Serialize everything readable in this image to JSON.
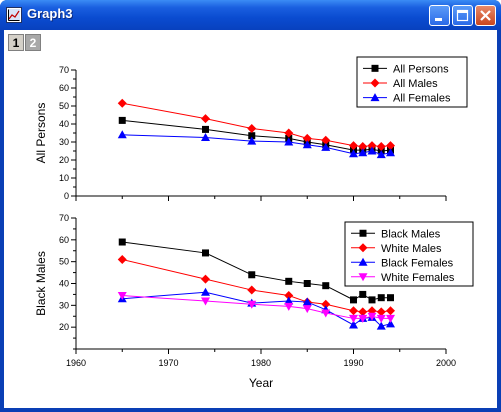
{
  "window": {
    "title": "Graph3",
    "layer_tabs": [
      "1",
      "2"
    ],
    "active_layer": "1"
  },
  "chart_data": [
    {
      "type": "line",
      "xlabel": "",
      "ylabel": "All Persons",
      "xlim": [
        1960,
        2000
      ],
      "ylim": [
        0,
        70
      ],
      "yticks": [
        0,
        10,
        20,
        30,
        40,
        50,
        60,
        70
      ],
      "legend_position": "top-right",
      "series": [
        {
          "name": "All Persons",
          "color": "#000000",
          "marker": "square",
          "x": [
            1965,
            1974,
            1979,
            1983,
            1985,
            1987,
            1990,
            1991,
            1992,
            1993,
            1994
          ],
          "y": [
            42.0,
            37.0,
            33.5,
            32.0,
            30.0,
            28.5,
            25.5,
            25.5,
            26.0,
            25.0,
            25.5
          ]
        },
        {
          "name": "All Males",
          "color": "#ff0000",
          "marker": "diamond",
          "x": [
            1965,
            1974,
            1979,
            1983,
            1985,
            1987,
            1990,
            1991,
            1992,
            1993,
            1994
          ],
          "y": [
            51.5,
            43.0,
            37.5,
            35.0,
            32.0,
            31.0,
            28.0,
            27.5,
            28.0,
            27.5,
            28.0
          ]
        },
        {
          "name": "All Females",
          "color": "#0000ff",
          "marker": "triangle-up",
          "x": [
            1965,
            1974,
            1979,
            1983,
            1985,
            1987,
            1990,
            1991,
            1992,
            1993,
            1994
          ],
          "y": [
            34.0,
            32.5,
            30.5,
            30.0,
            28.5,
            27.0,
            23.5,
            24.0,
            25.0,
            23.0,
            24.0
          ]
        }
      ]
    },
    {
      "type": "line",
      "xlabel": "Year",
      "ylabel": "Black Males",
      "xlim": [
        1960,
        2000
      ],
      "ylim": [
        10,
        70
      ],
      "yticks": [
        20,
        30,
        40,
        50,
        60,
        70
      ],
      "xticks": [
        1960,
        1970,
        1980,
        1990,
        2000
      ],
      "legend_position": "top-right",
      "series": [
        {
          "name": "Black Males",
          "color": "#000000",
          "marker": "square",
          "x": [
            1965,
            1974,
            1979,
            1983,
            1985,
            1987,
            1990,
            1991,
            1992,
            1993,
            1994
          ],
          "y": [
            59.0,
            54.0,
            44.0,
            41.0,
            40.0,
            39.0,
            32.5,
            35.0,
            32.5,
            33.5,
            33.5
          ]
        },
        {
          "name": "White Males",
          "color": "#ff0000",
          "marker": "diamond",
          "x": [
            1965,
            1974,
            1979,
            1983,
            1985,
            1987,
            1990,
            1991,
            1992,
            1993,
            1994
          ],
          "y": [
            51.0,
            42.0,
            37.0,
            34.5,
            31.5,
            30.5,
            27.5,
            27.0,
            27.5,
            27.0,
            27.5
          ]
        },
        {
          "name": "Black Females",
          "color": "#0000ff",
          "marker": "triangle-up",
          "x": [
            1965,
            1974,
            1979,
            1983,
            1985,
            1987,
            1990,
            1991,
            1992,
            1993,
            1994
          ],
          "y": [
            33.0,
            36.0,
            31.0,
            32.0,
            31.5,
            28.0,
            21.0,
            24.0,
            24.5,
            20.5,
            21.5
          ]
        },
        {
          "name": "White Females",
          "color": "#ff00ff",
          "marker": "triangle-down",
          "x": [
            1965,
            1974,
            1979,
            1983,
            1985,
            1987,
            1990,
            1991,
            1992,
            1993,
            1994
          ],
          "y": [
            34.5,
            32.0,
            30.5,
            29.5,
            28.5,
            26.5,
            24.0,
            24.0,
            25.0,
            24.0,
            24.0
          ]
        }
      ]
    }
  ]
}
